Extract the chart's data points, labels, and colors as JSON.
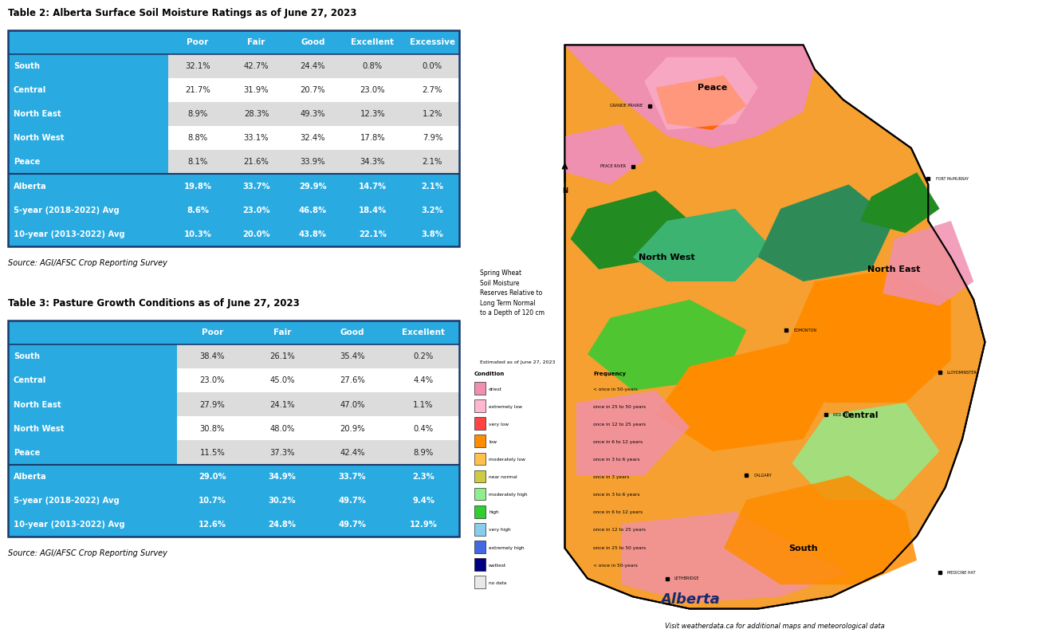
{
  "table1_title": "Table 2: Alberta Surface Soil Moisture Ratings as of June 27, 2023",
  "table1_headers": [
    "",
    "Poor",
    "Fair",
    "Good",
    "Excellent",
    "Excessive"
  ],
  "table1_rows": [
    [
      "South",
      "32.1%",
      "42.7%",
      "24.4%",
      "0.8%",
      "0.0%"
    ],
    [
      "Central",
      "21.7%",
      "31.9%",
      "20.7%",
      "23.0%",
      "2.7%"
    ],
    [
      "North East",
      "8.9%",
      "28.3%",
      "49.3%",
      "12.3%",
      "1.2%"
    ],
    [
      "North West",
      "8.8%",
      "33.1%",
      "32.4%",
      "17.8%",
      "7.9%"
    ],
    [
      "Peace",
      "8.1%",
      "21.6%",
      "33.9%",
      "34.3%",
      "2.1%"
    ],
    [
      "Alberta",
      "19.8%",
      "33.7%",
      "29.9%",
      "14.7%",
      "2.1%"
    ],
    [
      "5-year (2018-2022) Avg",
      "8.6%",
      "23.0%",
      "46.8%",
      "18.4%",
      "3.2%"
    ],
    [
      "10-year (2013-2022) Avg",
      "10.3%",
      "20.0%",
      "43.8%",
      "22.1%",
      "3.8%"
    ]
  ],
  "table1_source": "Source: AGI/AFSC Crop Reporting Survey",
  "table2_title": "Table 3: Pasture Growth Conditions as of June 27, 2023",
  "table2_headers": [
    "",
    "Poor",
    "Fair",
    "Good",
    "Excellent"
  ],
  "table2_rows": [
    [
      "South",
      "38.4%",
      "26.1%",
      "35.4%",
      "0.2%"
    ],
    [
      "Central",
      "23.0%",
      "45.0%",
      "27.6%",
      "4.4%"
    ],
    [
      "North East",
      "27.9%",
      "24.1%",
      "47.0%",
      "1.1%"
    ],
    [
      "North West",
      "30.8%",
      "48.0%",
      "20.9%",
      "0.4%"
    ],
    [
      "Peace",
      "11.5%",
      "37.3%",
      "42.4%",
      "8.9%"
    ],
    [
      "Alberta",
      "29.0%",
      "34.9%",
      "33.7%",
      "2.3%"
    ],
    [
      "5-year (2018-2022) Avg",
      "10.7%",
      "30.2%",
      "49.7%",
      "9.4%"
    ],
    [
      "10-year (2013-2022) Avg",
      "12.6%",
      "24.8%",
      "49.7%",
      "12.9%"
    ]
  ],
  "table2_source": "Source: AGI/AFSC Crop Reporting Survey",
  "map_footer": "Visit weatherdata.ca for additional maps and meteorological data",
  "header_bg": "#29ABE2",
  "label_bg": "#29ABE2",
  "highlight_bg": "#29ABE2",
  "alt_row_bg": "#DCDCDC",
  "normal_row_bg": "#FFFFFF",
  "border_color": "#1A3A6B",
  "highlight_rows": [
    5,
    6,
    7
  ]
}
